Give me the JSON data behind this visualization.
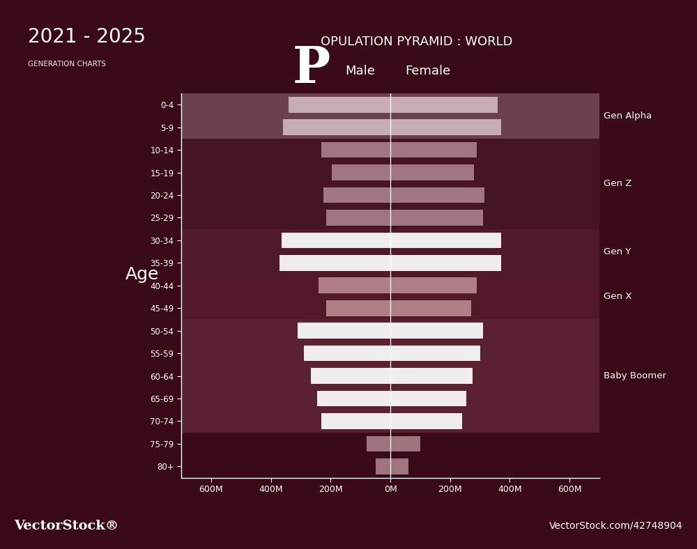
{
  "title_year": "2021 - 2025",
  "subtitle_gen": "GENERATION CHARTS",
  "title_main_big": "P",
  "title_main_rest": "OPULATION PYRAMID : WORLD",
  "age_groups": [
    "80+",
    "75-79",
    "70-74",
    "65-69",
    "60-64",
    "55-59",
    "50-54",
    "45-49",
    "40-44",
    "35-39",
    "30-34",
    "25-29",
    "20-24",
    "15-19",
    "10-14",
    "5-9",
    "0-4"
  ],
  "male_values": [
    50,
    80,
    230,
    245,
    265,
    290,
    310,
    215,
    240,
    370,
    365,
    215,
    225,
    195,
    230,
    360,
    340
  ],
  "female_values": [
    60,
    100,
    240,
    255,
    275,
    300,
    310,
    270,
    290,
    370,
    370,
    310,
    315,
    280,
    290,
    370,
    360
  ],
  "gen_bands": [
    {
      "name": "Baby Boomer",
      "ages": [
        "70-74",
        "65-69",
        "60-64",
        "55-59",
        "50-54"
      ],
      "color": "#8B3A4A",
      "alpha": 0.55,
      "label_age": "60-64"
    },
    {
      "name": "Gen X",
      "ages": [
        "45-49",
        "40-44"
      ],
      "color": "#7A3040",
      "alpha": 0.5,
      "label_age": "45-49"
    },
    {
      "name": "Gen Y",
      "ages": [
        "35-39",
        "30-34"
      ],
      "color": "#6B2535",
      "alpha": 0.55,
      "label_age": "35-39"
    },
    {
      "name": "Gen Z",
      "ages": [
        "25-29",
        "20-24",
        "15-19",
        "10-14"
      ],
      "color": "#5C1F2C",
      "alpha": 0.5,
      "label_age": "25-29"
    },
    {
      "name": "Gen Alpha",
      "ages": [
        "5-9",
        "0-4"
      ],
      "color": "#C9A0A8",
      "alpha": 0.45,
      "label_age": "5-9"
    }
  ],
  "bar_color_white": "#FFFFFF",
  "bar_color_medium": "#B08090",
  "bar_color_light": "#D4B0BC",
  "bar_color_pinkgray": "#C0A0A8",
  "axis_color": "#FFFFFF",
  "text_color": "#FFFFFF",
  "bg_color_outer": "#3A0A18",
  "bg_color_inner": "#7A2035",
  "xlim": 700,
  "xticks": [
    -600,
    -400,
    -200,
    0,
    200,
    400,
    600
  ],
  "xtick_labels": [
    "600M",
    "400M",
    "200M",
    "0M",
    "200M",
    "400M",
    "600M"
  ],
  "footer_left": "VectorStock®",
  "footer_right": "VectorStock.com/42748904"
}
